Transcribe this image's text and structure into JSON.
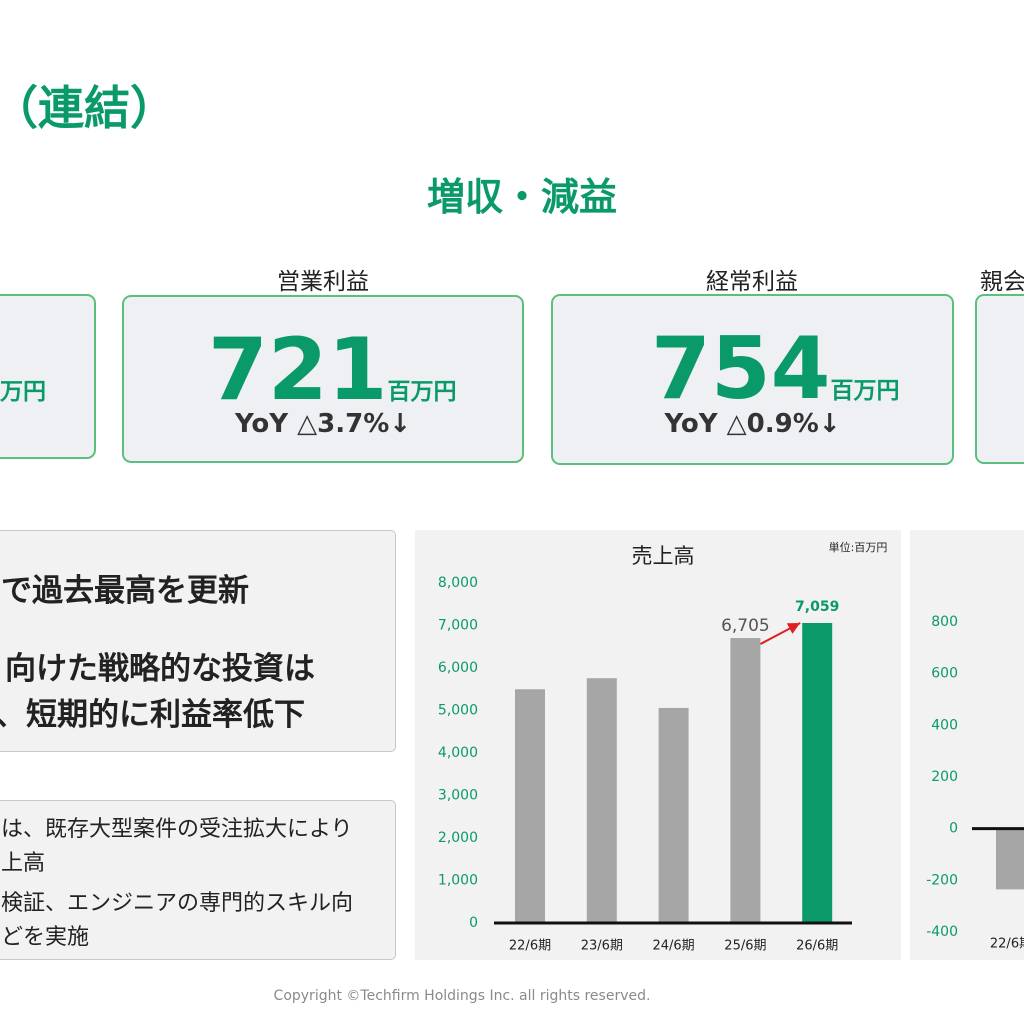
{
  "header": {
    "title": "（連結）",
    "subtitle": "増収・減益"
  },
  "cards": [
    {
      "unit": "万円"
    },
    {
      "label": "営業利益",
      "value": "721",
      "unit": "百万円",
      "yoy": "YoY △3.7%↓"
    },
    {
      "label": "経常利益",
      "value": "754",
      "unit": "百万円",
      "yoy": "YoY △0.9%↓"
    },
    {
      "label": "親会"
    }
  ],
  "highlights": [
    "で過去最高を更新",
    "向けた戦略的な投資は",
    "、短期的に利益率低下"
  ],
  "details": [
    "は、既存大型案件の受注拡大により",
    "上高",
    "検証、エンジニアの専門的スキル向",
    "どを実施"
  ],
  "chart_data": [
    {
      "type": "bar",
      "title": "売上高",
      "unit_note": "単位:百万円",
      "categories": [
        "22/6期",
        "23/6期",
        "24/6期",
        "25/6期",
        "26/6期"
      ],
      "values": [
        5500,
        5760,
        5060,
        6705,
        7059
      ],
      "value_labels": [
        null,
        null,
        null,
        "6,705",
        "7,059"
      ],
      "colors": [
        "#a6a6a6",
        "#a6a6a6",
        "#a6a6a6",
        "#a6a6a6",
        "#0a9a6a"
      ],
      "ylim": [
        0,
        8000
      ],
      "yticks": [
        0,
        {
          "value": 1000,
          "label": "1,000"
        },
        {
          "value": 2000,
          "label": "2,000"
        },
        {
          "value": 3000,
          "label": "3,000"
        },
        {
          "value": 4000,
          "label": "4,000"
        },
        {
          "value": 5000,
          "label": "5,000"
        },
        {
          "value": 6000,
          "label": "6,000"
        },
        {
          "value": 7000,
          "label": "7,000"
        },
        {
          "value": 8000,
          "label": "8,000"
        }
      ],
      "grid": false
    },
    {
      "type": "bar",
      "categories": [
        "22/6期"
      ],
      "values": [
        -235
      ],
      "colors": [
        "#a6a6a6"
      ],
      "ylim": [
        -400,
        800
      ],
      "yticks": [
        -400,
        -200,
        0,
        200,
        400,
        600,
        800
      ],
      "grid": false
    }
  ],
  "footer": "Copyright ©Techfirm Holdings Inc. all rights reserved."
}
